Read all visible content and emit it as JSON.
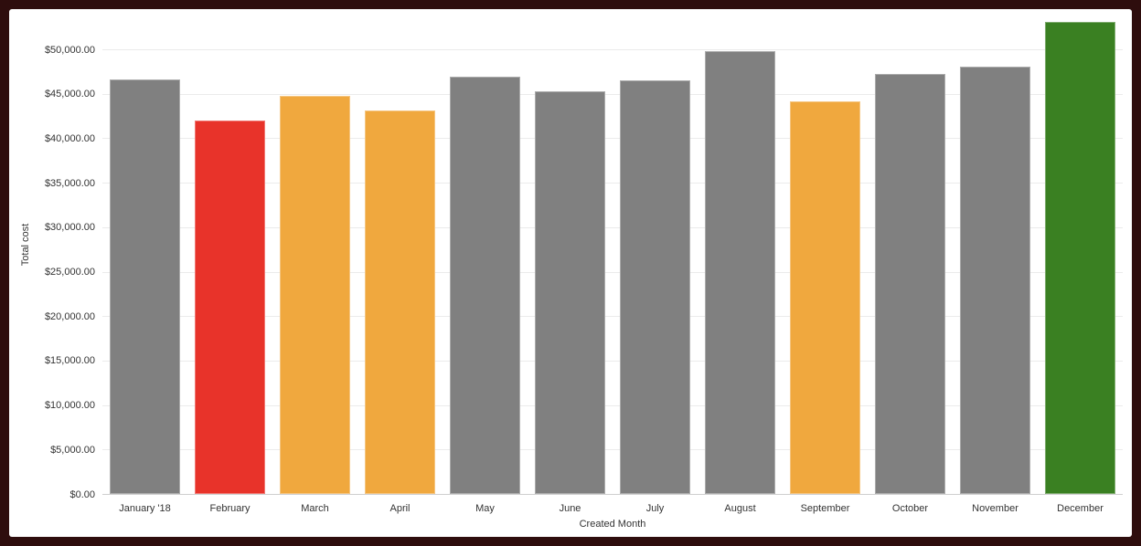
{
  "chart_data": {
    "type": "bar",
    "title": "",
    "xlabel": "Created Month",
    "ylabel": "Total cost",
    "categories": [
      "January '18",
      "February",
      "March",
      "April",
      "May",
      "June",
      "July",
      "August",
      "September",
      "October",
      "November",
      "December"
    ],
    "values": [
      46600,
      42000,
      44800,
      43100,
      46900,
      45300,
      46500,
      49800,
      44100,
      47200,
      48100,
      53100
    ],
    "bar_colors": [
      "#808080",
      "#e8332a",
      "#f0a83e",
      "#f0a83e",
      "#808080",
      "#808080",
      "#808080",
      "#808080",
      "#f0a83e",
      "#808080",
      "#808080",
      "#3a8022"
    ],
    "y_ticks": [
      "$0.00",
      "$5,000.00",
      "$10,000.00",
      "$15,000.00",
      "$20,000.00",
      "$25,000.00",
      "$30,000.00",
      "$35,000.00",
      "$40,000.00",
      "$45,000.00",
      "$50,000.00"
    ],
    "y_tick_step": 5000,
    "ylim": [
      0,
      53100
    ],
    "grid": true,
    "legend": "none"
  },
  "colors": {
    "frame": "#2e0d0d",
    "panel_bg": "#ffffff",
    "gridline": "#ebebeb",
    "axis_line": "#cfcfcf",
    "text": "#333333",
    "bar_gray": "#808080",
    "bar_red": "#e8332a",
    "bar_orange": "#f0a83e",
    "bar_green": "#3a8022"
  }
}
